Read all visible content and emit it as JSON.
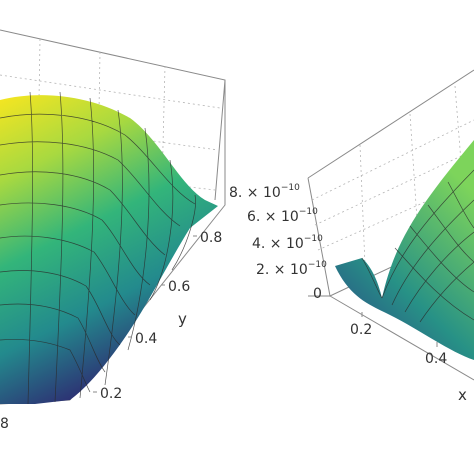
{
  "chart_data": [
    {
      "type": "surface",
      "title": "",
      "axes": {
        "y": {
          "label": "y",
          "ticks": [
            "0.2",
            "0.4",
            "0.6",
            "0.8"
          ]
        },
        "x": {
          "label": "",
          "ticks": [
            "8"
          ]
        }
      },
      "colormap": "viridis",
      "note_ticks_visible": [
        "8"
      ]
    },
    {
      "type": "surface",
      "title": "",
      "axes": {
        "z": {
          "label": "",
          "ticks": [
            "0",
            "2. × 10⁻¹⁰",
            "4. × 10⁻¹⁰",
            "6. × 10⁻¹⁰",
            "8. × 10⁻¹⁰"
          ]
        },
        "x": {
          "label": "x",
          "ticks": [
            "0.2",
            "0.4"
          ]
        }
      },
      "colormap": "viridis"
    }
  ],
  "colors": {
    "viridis_low": "#2b1f5f",
    "viridis_mid": "#23a184",
    "viridis_high": "#f4e51e",
    "box_line": "#8a8a8a"
  }
}
